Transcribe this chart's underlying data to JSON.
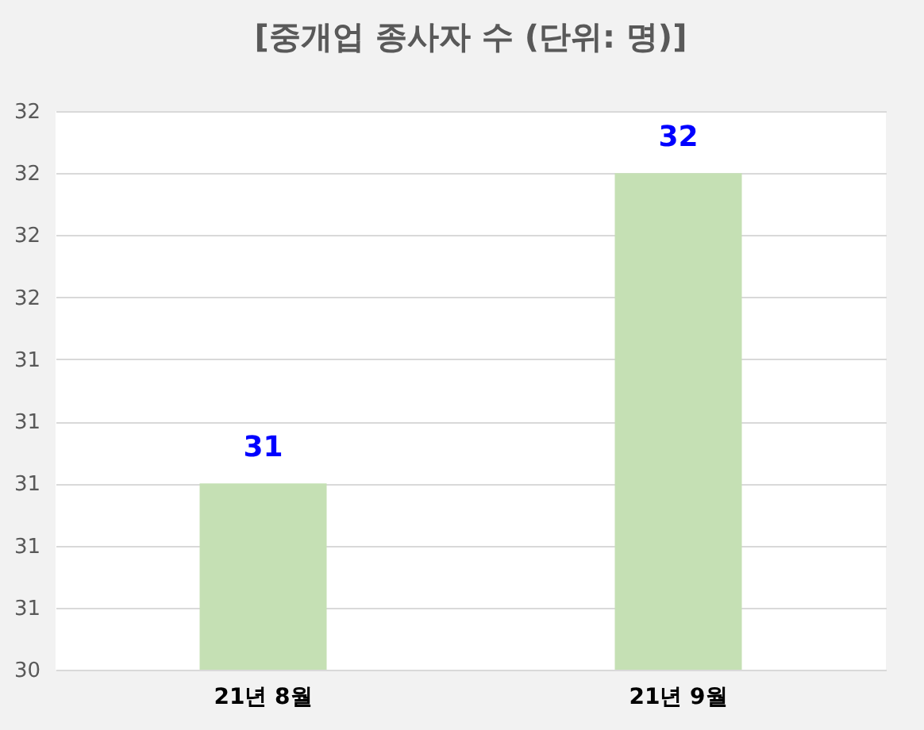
{
  "chart_data": {
    "type": "bar",
    "title": "[중개업 종사자 수 (단위: 명)]",
    "categories": [
      "21년 8월",
      "21년 9월"
    ],
    "values": [
      31,
      32
    ],
    "color": "#c5e0b4",
    "ylim": [
      30.4,
      32.2
    ],
    "yticks": [
      {
        "value": 30.4,
        "label": "30"
      },
      {
        "value": 30.6,
        "label": "31"
      },
      {
        "value": 30.8,
        "label": "31"
      },
      {
        "value": 31.0,
        "label": "31"
      },
      {
        "value": 31.2,
        "label": "31"
      },
      {
        "value": 31.4,
        "label": "31"
      },
      {
        "value": 31.6,
        "label": "32"
      },
      {
        "value": 31.8,
        "label": "32"
      },
      {
        "value": 32.0,
        "label": "32"
      },
      {
        "value": 32.2,
        "label": "32"
      }
    ],
    "grid": "y",
    "data_labels": true
  }
}
